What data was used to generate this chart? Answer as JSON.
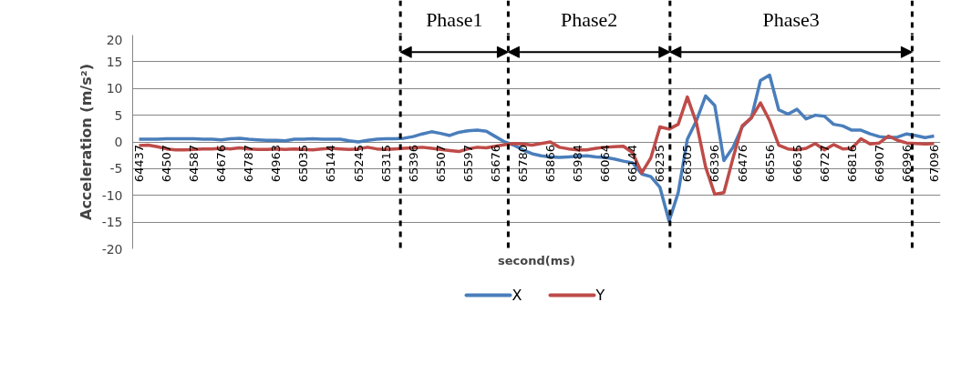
{
  "chart_data": {
    "type": "line",
    "xlabel": "second(ms)",
    "ylabel": "Acceleration (m/s²)",
    "categories": [
      "64437",
      null,
      null,
      "64507",
      null,
      null,
      "64587",
      null,
      null,
      "64676",
      null,
      null,
      "64787",
      null,
      null,
      "64963",
      null,
      null,
      "65035",
      null,
      null,
      "65144",
      null,
      null,
      "65245",
      null,
      null,
      "65315",
      null,
      null,
      "65396",
      null,
      null,
      "65507",
      null,
      null,
      "65597",
      null,
      null,
      "65676",
      null,
      null,
      "65780",
      null,
      null,
      "65866",
      null,
      null,
      "65984",
      null,
      null,
      "66064",
      null,
      null,
      "66144",
      null,
      null,
      "66235",
      null,
      null,
      "66305",
      null,
      null,
      "66396",
      null,
      null,
      "66476",
      null,
      null,
      "66556",
      null,
      null,
      "66635",
      null,
      null,
      "66727",
      null,
      null,
      "66816",
      null,
      null,
      "66907",
      null,
      null,
      "66996",
      null,
      null,
      "67096"
    ],
    "series": [
      {
        "name": "X",
        "color": "#4a7ebb",
        "values": [
          0.5,
          0.5,
          0.5,
          0.6,
          0.6,
          0.6,
          0.6,
          0.5,
          0.5,
          0.4,
          0.6,
          0.7,
          0.5,
          0.4,
          0.3,
          0.3,
          0.2,
          0.5,
          0.5,
          0.6,
          0.5,
          0.5,
          0.5,
          0.2,
          0.0,
          0.3,
          0.5,
          0.6,
          0.6,
          0.7,
          1.0,
          1.5,
          1.9,
          1.6,
          1.2,
          1.8,
          2.1,
          2.2,
          2.0,
          1.0,
          0.0,
          -0.6,
          -1.5,
          -2.2,
          -2.6,
          -2.8,
          -2.9,
          -2.8,
          -2.7,
          -2.6,
          -2.8,
          -2.9,
          -3.2,
          -3.6,
          -3.9,
          -6.0,
          -6.5,
          -8.5,
          -14.8,
          -9.5,
          0.5,
          4.0,
          8.6,
          6.8,
          -3.5,
          -1.0,
          2.8,
          4.5,
          11.5,
          12.5,
          6.0,
          5.2,
          6.1,
          4.3,
          5.0,
          4.8,
          3.3,
          3.0,
          2.2,
          2.2,
          1.5,
          1.0,
          0.8,
          0.9,
          1.5,
          1.2,
          0.8,
          1.1
        ]
      },
      {
        "name": "Y",
        "color": "#be4b48",
        "values": [
          -0.7,
          -0.6,
          -0.9,
          -1.3,
          -1.5,
          -1.5,
          -1.4,
          -1.3,
          -1.3,
          -1.2,
          -1.3,
          -1.1,
          -1.3,
          -1.4,
          -1.4,
          -1.3,
          -1.4,
          -1.3,
          -1.4,
          -1.5,
          -1.3,
          -1.2,
          -1.3,
          -1.4,
          -1.3,
          -1.0,
          -1.3,
          -1.4,
          -1.3,
          -1.2,
          -1.1,
          -1.0,
          -1.2,
          -1.4,
          -1.6,
          -1.8,
          -1.3,
          -1.0,
          -1.1,
          -0.8,
          -0.5,
          -0.3,
          -0.4,
          -0.6,
          -0.3,
          0.0,
          -1.0,
          -1.3,
          -1.5,
          -1.5,
          -1.2,
          -1.0,
          -0.9,
          -0.8,
          -2.0,
          -5.8,
          -3.0,
          2.8,
          2.4,
          3.3,
          8.4,
          3.5,
          -4.7,
          -9.8,
          -9.5,
          -3.0,
          3.0,
          4.5,
          7.3,
          4.0,
          -0.6,
          -1.3,
          -1.5,
          -1.2,
          -0.3,
          -1.5,
          -0.5,
          -1.3,
          -1.2,
          0.6,
          -0.4,
          -0.2,
          1.1,
          0.3,
          -0.2,
          -0.3,
          -0.4,
          -0.3
        ]
      }
    ],
    "ylim": [
      -20,
      20
    ],
    "yticks": [
      -20,
      -15,
      -10,
      -5,
      0,
      5,
      10,
      15,
      20
    ],
    "grid": "y",
    "legend": "bottom",
    "marker": "none",
    "line_style": "solid",
    "annotations": [
      "Phase1",
      "Phase2",
      "Phase3"
    ]
  }
}
